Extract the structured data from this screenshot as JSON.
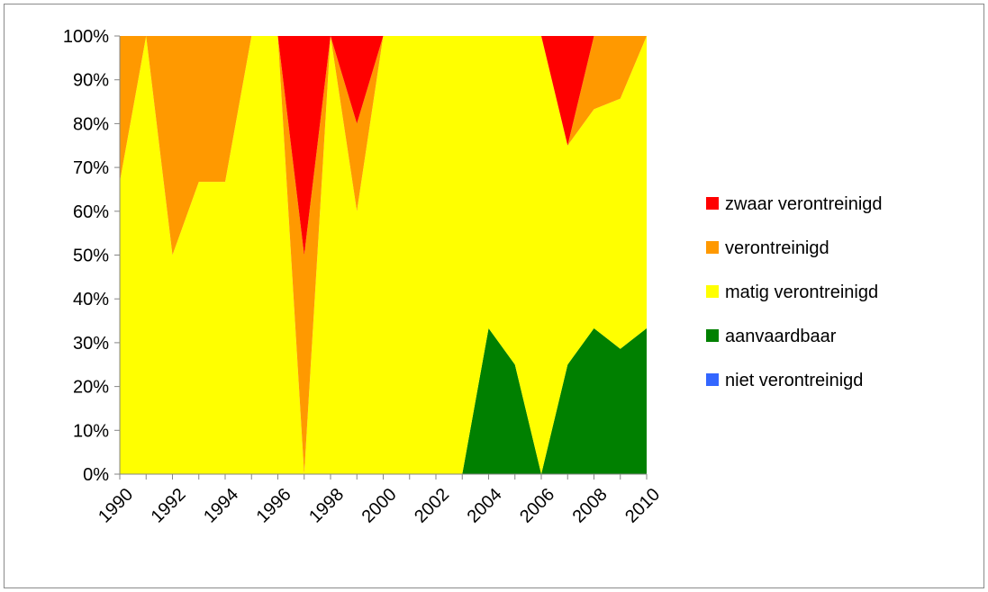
{
  "chart_data": {
    "type": "area",
    "stacked": "percent",
    "x": [
      1990,
      1991,
      1992,
      1993,
      1994,
      1995,
      1996,
      1997,
      1998,
      1999,
      2000,
      2001,
      2002,
      2003,
      2004,
      2005,
      2006,
      2007,
      2008,
      2009,
      2010
    ],
    "x_tick_labels": [
      "1990",
      "1992",
      "1994",
      "1996",
      "1998",
      "2000",
      "2002",
      "2004",
      "2006",
      "2008",
      "2010"
    ],
    "y_tick_labels": [
      "0%",
      "10%",
      "20%",
      "30%",
      "40%",
      "50%",
      "60%",
      "70%",
      "80%",
      "90%",
      "100%"
    ],
    "ylim": [
      0,
      100
    ],
    "grid": false,
    "legend_position": "right",
    "series": [
      {
        "name": "niet verontreinigd",
        "color": "#3366ff",
        "values": [
          0,
          0,
          0,
          0,
          0,
          0,
          0,
          0,
          0,
          0,
          0,
          0,
          0,
          0,
          0,
          0,
          0,
          0,
          0,
          0,
          0
        ]
      },
      {
        "name": "aanvaardbaar",
        "color": "#008000",
        "values": [
          0,
          0,
          0,
          0,
          0,
          0,
          0,
          0,
          0,
          0,
          0,
          0,
          0,
          0,
          33.3,
          25,
          0,
          25,
          33.3,
          28.6,
          33.3
        ]
      },
      {
        "name": "matig verontreinigd",
        "color": "#ffff00",
        "values": [
          66.7,
          100,
          50,
          66.7,
          66.7,
          100,
          100,
          0,
          100,
          60,
          100,
          100,
          100,
          100,
          66.7,
          75,
          100,
          50,
          50,
          57.1,
          66.7
        ]
      },
      {
        "name": "verontreinigd",
        "color": "#ff9900",
        "values": [
          33.3,
          0,
          50,
          33.3,
          33.3,
          0,
          0,
          50,
          0,
          20,
          0,
          0,
          0,
          0,
          0,
          0,
          0,
          0,
          16.7,
          14.3,
          0
        ]
      },
      {
        "name": "zwaar verontreinigd",
        "color": "#ff0000",
        "values": [
          0,
          0,
          0,
          0,
          0,
          0,
          0,
          50,
          0,
          20,
          0,
          0,
          0,
          0,
          0,
          0,
          0,
          25,
          0,
          0,
          0
        ]
      }
    ],
    "legend_order": [
      "zwaar verontreinigd",
      "verontreinigd",
      "matig verontreinigd",
      "aanvaardbaar",
      "niet verontreinigd"
    ]
  }
}
